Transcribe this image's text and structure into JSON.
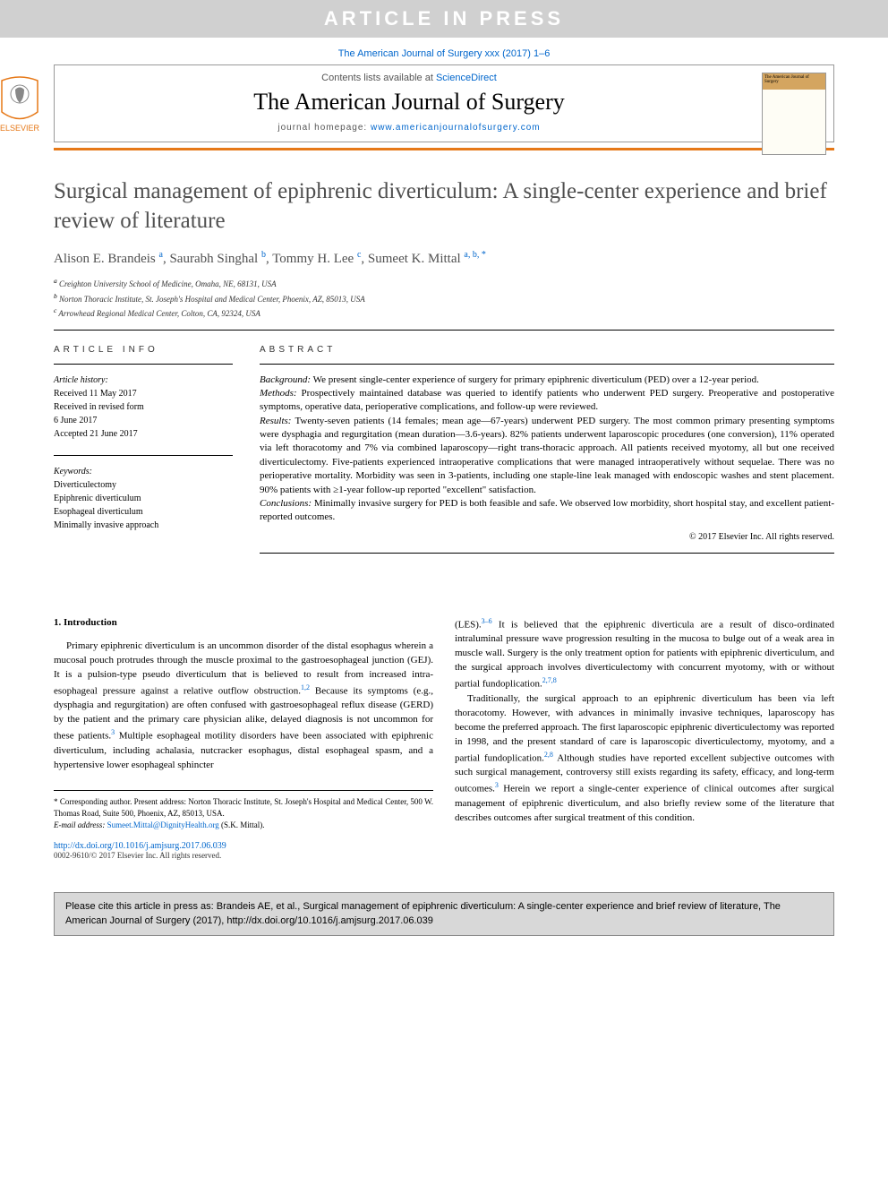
{
  "banner": "ARTICLE IN PRESS",
  "citation": "The American Journal of Surgery xxx (2017) 1–6",
  "contentsPrefix": "Contents lists available at ",
  "contentsLink": "ScienceDirect",
  "journalName": "The American Journal of Surgery",
  "homepagePrefix": "journal homepage: ",
  "homepageUrl": "www.americanjournalofsurgery.com",
  "elsevierLabel": "ELSEVIER",
  "coverText": "The American Journal of Surgery",
  "title": "Surgical management of epiphrenic diverticulum: A single-center experience and brief review of literature",
  "authors": [
    {
      "name": "Alison E. Brandeis",
      "sup": "a"
    },
    {
      "name": "Saurabh Singhal",
      "sup": "b"
    },
    {
      "name": "Tommy H. Lee",
      "sup": "c"
    },
    {
      "name": "Sumeet K. Mittal",
      "sup": "a, b, *"
    }
  ],
  "affiliations": [
    {
      "sup": "a",
      "text": "Creighton University School of Medicine, Omaha, NE, 68131, USA"
    },
    {
      "sup": "b",
      "text": "Norton Thoracic Institute, St. Joseph's Hospital and Medical Center, Phoenix, AZ, 85013, USA"
    },
    {
      "sup": "c",
      "text": "Arrowhead Regional Medical Center, Colton, CA, 92324, USA"
    }
  ],
  "infoHeading": "ARTICLE INFO",
  "abstractHeading": "ABSTRACT",
  "history": {
    "label": "Article history:",
    "lines": [
      "Received 11 May 2017",
      "Received in revised form",
      "6 June 2017",
      "Accepted 21 June 2017"
    ]
  },
  "keywords": {
    "label": "Keywords:",
    "items": [
      "Diverticulectomy",
      "Epiphrenic diverticulum",
      "Esophageal diverticulum",
      "Minimally invasive approach"
    ]
  },
  "abstract": {
    "background": {
      "label": "Background:",
      "text": " We present single-center experience of surgery for primary epiphrenic diverticulum (PED) over a 12-year period."
    },
    "methods": {
      "label": "Methods:",
      "text": " Prospectively maintained database was queried to identify patients who underwent PED surgery. Preoperative and postoperative symptoms, operative data, perioperative complications, and follow-up were reviewed."
    },
    "results": {
      "label": "Results:",
      "text": " Twenty-seven patients (14 females; mean age—67-years) underwent PED surgery. The most common primary presenting symptoms were dysphagia and regurgitation (mean duration—3.6-years). 82% patients underwent laparoscopic procedures (one conversion), 11% operated via left thoracotomy and 7% via combined laparoscopy—right trans-thoracic approach. All patients received myotomy, all but one received diverticulectomy. Five-patients experienced intraoperative complications that were managed intraoperatively without sequelae. There was no perioperative mortality. Morbidity was seen in 3-patients, including one staple-line leak managed with endoscopic washes and stent placement. 90% patients with ≥1-year follow-up reported \"excellent\" satisfaction."
    },
    "conclusions": {
      "label": "Conclusions:",
      "text": " Minimally invasive surgery for PED is both feasible and safe. We observed low morbidity, short hospital stay, and excellent patient-reported outcomes."
    }
  },
  "copyright": "© 2017 Elsevier Inc. All rights reserved.",
  "introHeading": "1. Introduction",
  "introP1a": "Primary epiphrenic diverticulum is an uncommon disorder of the distal esophagus wherein a mucosal pouch protrudes through the muscle proximal to the gastroesophageal junction (GEJ). It is a pulsion-type pseudo diverticulum that is believed to result from increased intra-esophageal pressure against a relative outflow obstruction.",
  "introP1b": " Because its symptoms (e.g., dysphagia and regurgitation) are often confused with gastroesophageal reflux disease (GERD) by the patient and the primary care physician alike, delayed diagnosis is not uncommon for these patients.",
  "introP1c": " Multiple esophageal motility disorders have been associated with epiphrenic diverticulum, including achalasia, nutcracker esophagus, distal esophageal spasm, and a hypertensive lower esophageal sphincter",
  "col2P1a": "(LES).",
  "col2P1b": " It is believed that the epiphrenic diverticula are a result of disco-ordinated intraluminal pressure wave progression resulting in the mucosa to bulge out of a weak area in muscle wall. Surgery is the only treatment option for patients with epiphrenic diverticulum, and the surgical approach involves diverticulectomy with concurrent myotomy, with or without partial fundoplication.",
  "col2P2a": "Traditionally, the surgical approach to an epiphrenic diverticulum has been via left thoracotomy. However, with advances in minimally invasive techniques, laparoscopy has become the preferred approach. The first laparoscopic epiphrenic diverticulectomy was reported in 1998, and the present standard of care is laparoscopic diverticulectomy, myotomy, and a partial fundoplication.",
  "col2P2b": " Although studies have reported excellent subjective outcomes with such surgical management, controversy still exists regarding its safety, efficacy, and long-term outcomes.",
  "col2P2c": " Herein we report a single-center experience of clinical outcomes after surgical management of epiphrenic diverticulum, and also briefly review some of the literature that describes outcomes after surgical treatment of this condition.",
  "refs": {
    "r12": "1,2",
    "r3": "3",
    "r36": "3–6",
    "r278": "2,7,8",
    "r28": "2,8"
  },
  "corresponding": "* Corresponding author. Present address: Norton Thoracic Institute, St. Joseph's Hospital and Medical Center, 500 W. Thomas Road, Suite 500, Phoenix, AZ, 85013, USA.",
  "emailLabel": "E-mail address: ",
  "email": "Sumeet.Mittal@DignityHealth.org",
  "emailSuffix": " (S.K. Mittal).",
  "doi": "http://dx.doi.org/10.1016/j.amjsurg.2017.06.039",
  "issn": "0002-9610/© 2017 Elsevier Inc. All rights reserved.",
  "citeBox": "Please cite this article in press as: Brandeis AE, et al., Surgical management of epiphrenic diverticulum: A single-center experience and brief review of literature, The American Journal of Surgery (2017), http://dx.doi.org/10.1016/j.amjsurg.2017.06.039",
  "colors": {
    "orange": "#e67817",
    "link": "#0066cc",
    "bannerBg": "#d0d0d0",
    "citeBg": "#d8d8d8",
    "titleColor": "#505050"
  }
}
